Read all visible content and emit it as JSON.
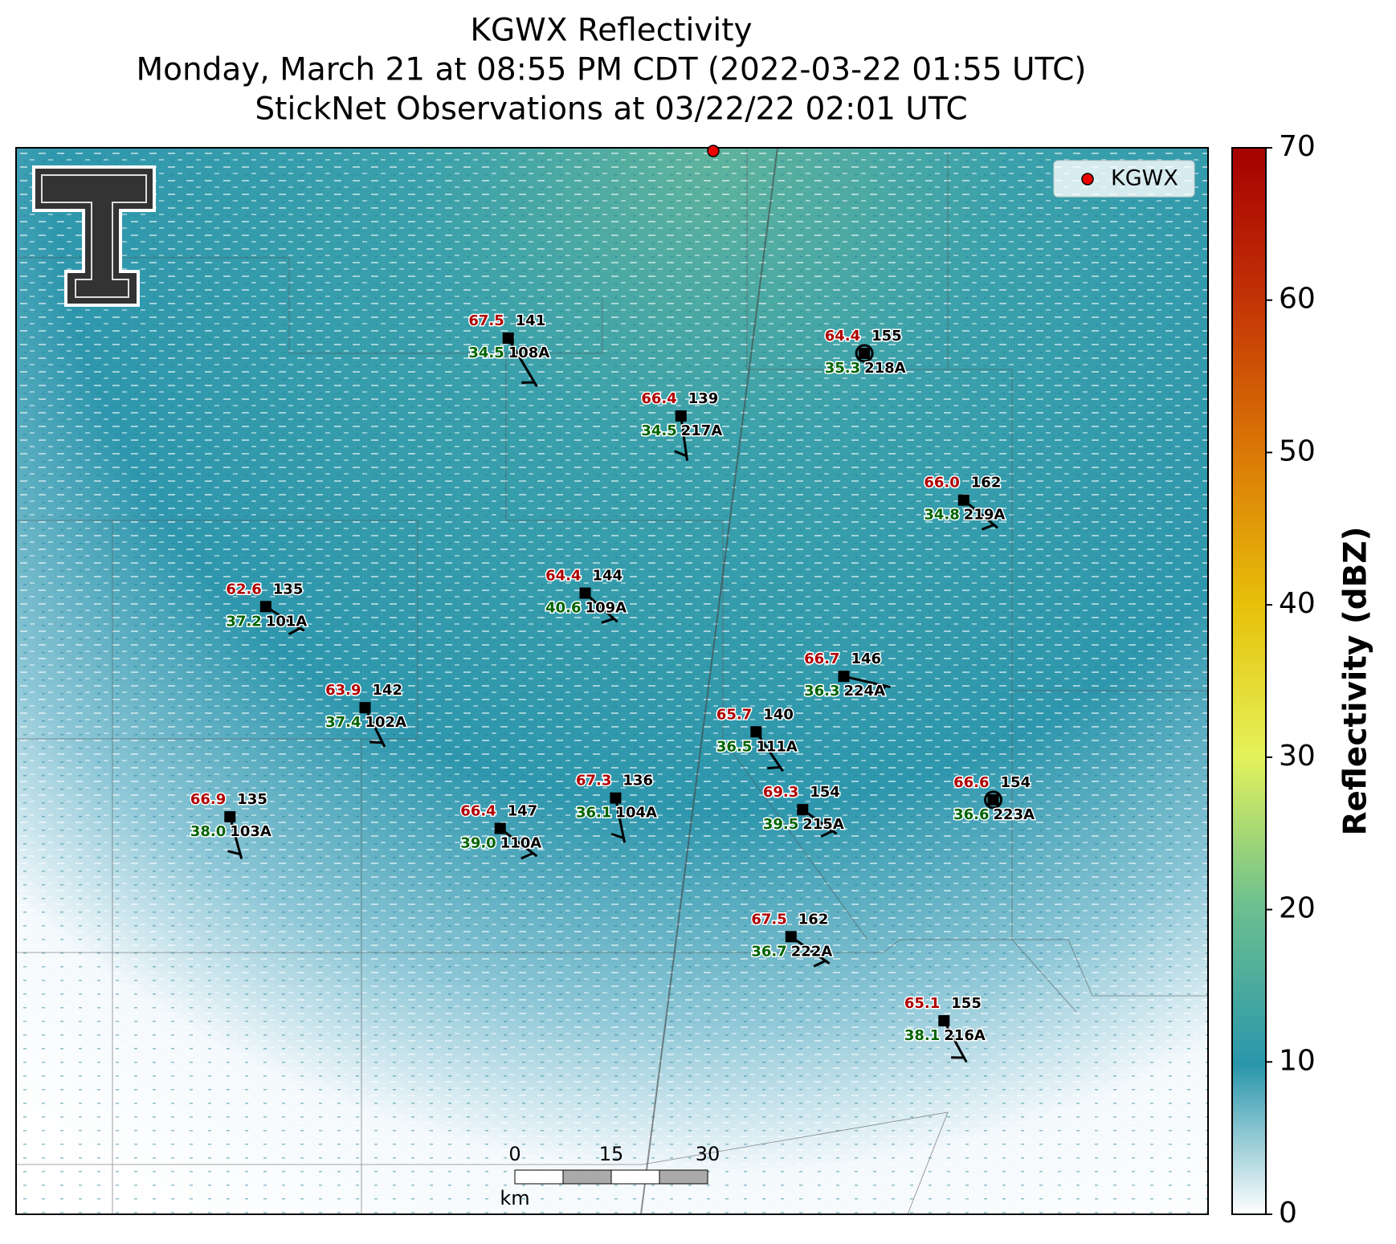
{
  "title": [
    "KGWX Reflectivity",
    "Monday, March 21 at 08:55 PM CDT (2022-03-22 01:55 UTC)",
    "StickNet Observations at 03/22/22 02:01 UTC"
  ],
  "legend": {
    "label": "KGWX"
  },
  "colorbar": {
    "label": "Reflectivity (dBZ)",
    "lim": [
      0,
      70
    ],
    "ticks": [
      0,
      10,
      20,
      30,
      40,
      50,
      60,
      70
    ]
  },
  "scale_bar": {
    "ticks": [
      0,
      15,
      30
    ],
    "unit": "km"
  },
  "stations": [
    {
      "id": "108A",
      "temperature": "67.5",
      "dewpoint": "34.5",
      "pressure": "141"
    },
    {
      "id": "217A",
      "temperature": "66.4",
      "dewpoint": "34.5",
      "pressure": "139"
    },
    {
      "id": "218A",
      "temperature": "64.4",
      "dewpoint": "35.3",
      "pressure": "155"
    },
    {
      "id": "219A",
      "temperature": "66.0",
      "dewpoint": "34.8",
      "pressure": "162"
    },
    {
      "id": "109A",
      "temperature": "64.4",
      "dewpoint": "40.6",
      "pressure": "144"
    },
    {
      "id": "101A",
      "temperature": "62.6",
      "dewpoint": "37.2",
      "pressure": "135"
    },
    {
      "id": "224A",
      "temperature": "66.7",
      "dewpoint": "36.3",
      "pressure": "146"
    },
    {
      "id": "102A",
      "temperature": "63.9",
      "dewpoint": "37.4",
      "pressure": "142"
    },
    {
      "id": "111A",
      "temperature": "65.7",
      "dewpoint": "36.5",
      "pressure": "140"
    },
    {
      "id": "223A",
      "temperature": "66.6",
      "dewpoint": "36.6",
      "pressure": "154"
    },
    {
      "id": "104A",
      "temperature": "67.3",
      "dewpoint": "36.1",
      "pressure": "136"
    },
    {
      "id": "215A",
      "temperature": "69.3",
      "dewpoint": "39.5",
      "pressure": "154"
    },
    {
      "id": "103A",
      "temperature": "66.9",
      "dewpoint": "38.0",
      "pressure": "135"
    },
    {
      "id": "110A",
      "temperature": "66.4",
      "dewpoint": "39.0",
      "pressure": "147"
    },
    {
      "id": "222A",
      "temperature": "67.5",
      "dewpoint": "36.7",
      "pressure": "162"
    },
    {
      "id": "216A",
      "temperature": "65.1",
      "dewpoint": "38.1",
      "pressure": "155"
    }
  ]
}
